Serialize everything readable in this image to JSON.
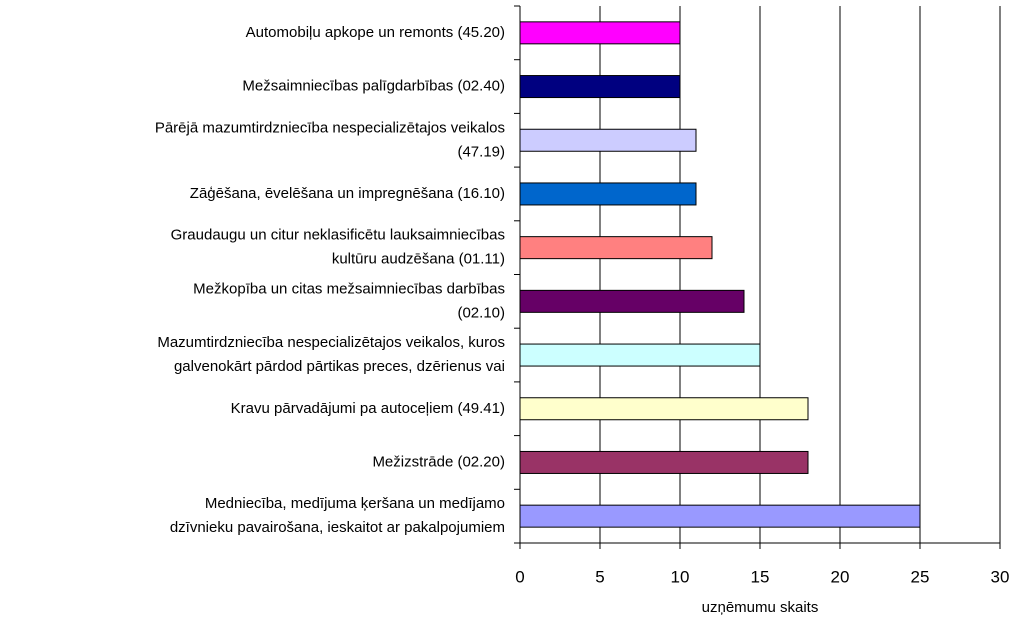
{
  "chart_data": {
    "type": "barh",
    "categories": [
      "Automobiļu apkope un remonts (45.20)",
      "Mežsaimniecības palīgdarbības (02.40)",
      "Pārējā mazumtirdzniecība nespecializētajos veikalos\n(47.19)",
      "Zāģēšana, ēvelēšana un impregnēšana (16.10)",
      "Graudaugu un citur neklasificētu lauksaimniecības\nkultūru audzēšana (01.11)",
      "Mežkopība un citas mežsaimniecības darbības\n(02.10)",
      "Mazumtirdzniecība nespecializētajos veikalos, kuros\ngalvenokārt pārdod pārtikas preces, dzērienus vai",
      "Kravu pārvadājumi pa autoceļiem (49.41)",
      "Mežizstrāde (02.20)",
      "Medniecība, medījuma ķeršana un medījamo\ndzīvnieku pavairošana, ieskaitot ar pakalpojumiem"
    ],
    "values": [
      10,
      10,
      11,
      11,
      12,
      14,
      15,
      18,
      18,
      25
    ],
    "colors": [
      "#ff00ff",
      "#000080",
      "#ccccff",
      "#0066cc",
      "#ff8080",
      "#660066",
      "#ccffff",
      "#ffffcc",
      "#993366",
      "#9999ff"
    ],
    "xlabel": "uzņēmumu skaits",
    "xlim": [
      0,
      30
    ],
    "xticks": [
      0,
      5,
      10,
      15,
      20,
      25,
      30
    ],
    "grid": true
  }
}
